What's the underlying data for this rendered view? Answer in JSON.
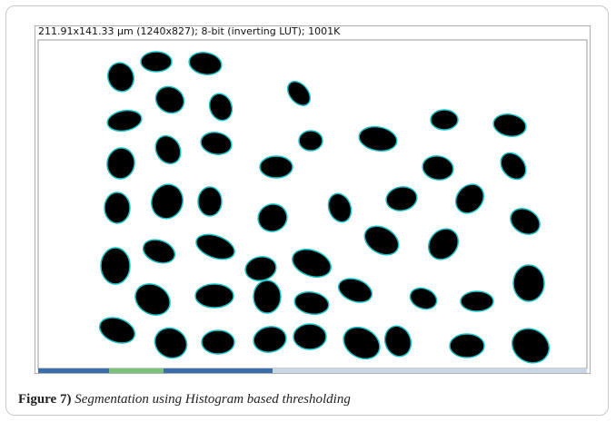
{
  "figure": {
    "window_title": "211.91x141.33 µm (1240x827); 8-bit (inverting LUT); 1001K",
    "caption_label": "Figure 7)",
    "caption_text": "Segmentation using Histogram based thresholding"
  }
}
